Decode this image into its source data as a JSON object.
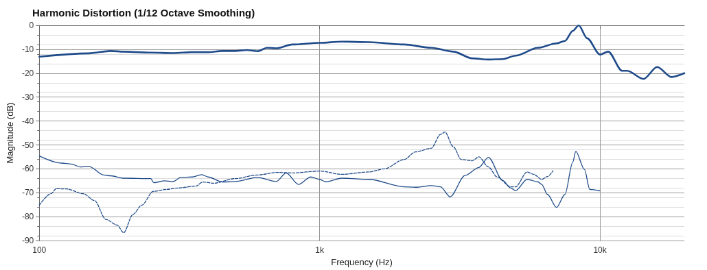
{
  "chart_data": {
    "type": "line",
    "title": "Harmonic Distortion (1/12 Octave Smoothing)",
    "xlabel": "Frequency (Hz)",
    "ylabel": "Magnitude (dB)",
    "log": "x",
    "grid": true,
    "marker": "none",
    "xlim": [
      100,
      20000
    ],
    "xticks": [
      100,
      {
        "value": 1000,
        "label": "1k"
      },
      {
        "value": 10000,
        "label": "10k"
      }
    ],
    "ylim": [
      -90,
      0
    ],
    "yticks": [
      -90,
      -80,
      -70,
      -60,
      -50,
      -40,
      -30,
      -20,
      -10,
      0
    ],
    "series": [
      {
        "color": "#1f4b8a",
        "line_style": "solid",
        "x": [
          100,
          150,
          180,
          200,
          250,
          300,
          350,
          400,
          450,
          500,
          550,
          600,
          650,
          700,
          800,
          1000,
          1200,
          1500,
          2000,
          2500,
          3000,
          3500,
          4000,
          4500,
          5000,
          6000,
          7000,
          7500,
          8000,
          8400,
          9000,
          10000,
          10700,
          12000,
          12500,
          14300,
          16000,
          18000,
          20000
        ],
        "values": [
          -13.1,
          -11.7,
          -10.7,
          -11,
          -11.4,
          -11.6,
          -11.2,
          -11.2,
          -10.7,
          -10.7,
          -10.3,
          -10.8,
          -9.4,
          -9.6,
          -8,
          -7.3,
          -6.8,
          -7,
          -8,
          -9.4,
          -11,
          -13.8,
          -14.3,
          -14.1,
          -12.7,
          -9.4,
          -7.5,
          -6.5,
          -2.3,
          0,
          -5.4,
          -12.2,
          -11,
          -19,
          -19,
          -22.4,
          -17.4,
          -21.6,
          -20
        ]
      },
      {
        "color": "#1f4b8a",
        "line_style": "solid",
        "x": [
          100,
          120,
          130,
          140,
          150,
          170,
          180,
          200,
          250,
          256,
          280,
          300,
          320,
          350,
          380,
          400,
          450,
          500,
          600,
          700,
          760,
          840,
          930,
          1000,
          1050,
          1200,
          1500,
          2000,
          2200,
          2500,
          2700,
          2920,
          3300,
          3700,
          4000,
          4500,
          4800,
          5000,
          5500,
          6000,
          6200,
          6500,
          7000,
          7500,
          8000,
          8200,
          8800,
          9200,
          10000
        ],
        "values": [
          -54.6,
          -57.6,
          -58,
          -59.2,
          -58.9,
          -62.6,
          -62.9,
          -63.9,
          -64.1,
          -65.8,
          -65,
          -65.3,
          -63.6,
          -63.4,
          -62.4,
          -63.4,
          -65.5,
          -65.3,
          -63.6,
          -65.3,
          -61.7,
          -66.5,
          -63.4,
          -64.4,
          -65.4,
          -63.9,
          -64.4,
          -67.5,
          -67.7,
          -67,
          -67.5,
          -71.7,
          -62.8,
          -59.4,
          -55.2,
          -64.9,
          -68,
          -69.1,
          -64.4,
          -65.4,
          -66.5,
          -70.7,
          -76.1,
          -70.7,
          -57.1,
          -52.7,
          -60.2,
          -68.6,
          -69.2
        ]
      },
      {
        "color": "#1f4b8a",
        "line_style": "dashed",
        "x": [
          100,
          110,
          115,
          125,
          143.5,
          157.5,
          172.7,
          189.5,
          200,
          215.7,
          232,
          255,
          285,
          312,
          362,
          383,
          420,
          497,
          597,
          706,
          804,
          1000,
          1200,
          1500,
          1700,
          2000,
          2200,
          2500,
          2700,
          2800,
          3000,
          3200,
          3500,
          3700,
          4000,
          4300,
          4800,
          5000,
          5500,
          5800,
          6200,
          6500,
          6800
        ],
        "values": [
          -75.2,
          -70.4,
          -68.3,
          -68.4,
          -70.4,
          -73.3,
          -81.1,
          -83.5,
          -86.7,
          -79.1,
          -75.2,
          -69.4,
          -68.6,
          -68,
          -67.2,
          -65.5,
          -66,
          -64.1,
          -62.6,
          -61.5,
          -61.7,
          -60.9,
          -62.3,
          -61.3,
          -60,
          -56.1,
          -52.9,
          -51.4,
          -45.6,
          -44.6,
          -50.8,
          -56.1,
          -56.6,
          -55,
          -59.2,
          -63.4,
          -67.5,
          -67.5,
          -61.3,
          -62.3,
          -64.4,
          -63.2,
          -60.8
        ]
      }
    ]
  }
}
